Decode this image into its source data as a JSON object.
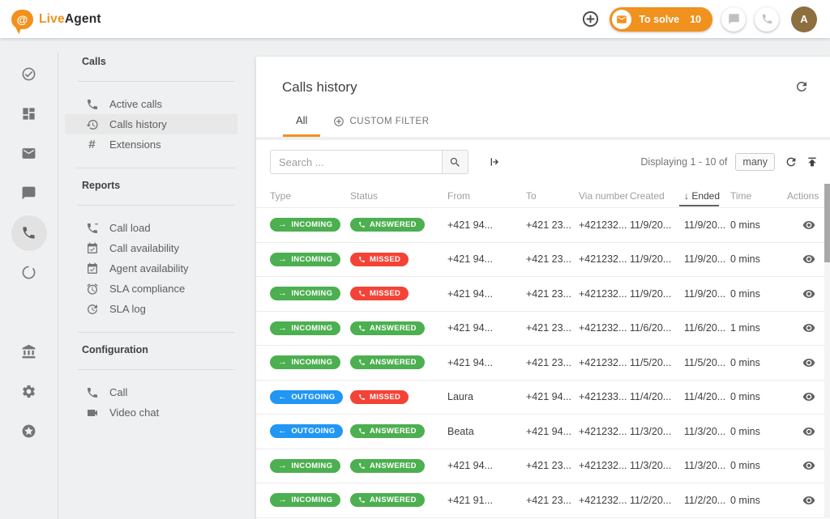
{
  "colors": {
    "accent_orange": "#f1911e",
    "incoming_green": "#4caf50",
    "outgoing_blue": "#2196f3",
    "missed_red": "#f44336",
    "avatar_brown": "#8d6e3f"
  },
  "topbar": {
    "logo_live": "Live",
    "logo_agent": "Agent",
    "logo_icon": "at-speech-bubble-icon",
    "add_icon": "add-circle-icon",
    "to_solve": {
      "icon": "mail-icon",
      "label": "To solve",
      "count": "10"
    },
    "chat_icon": "chat-icon",
    "phone_icon": "phone-icon",
    "avatar_letter": "A"
  },
  "nav_rail": {
    "items": [
      {
        "icon": "check-circle-icon",
        "active": false
      },
      {
        "icon": "dashboard-icon",
        "active": false
      },
      {
        "icon": "mail-icon",
        "active": false
      },
      {
        "icon": "chat-icon",
        "active": false
      },
      {
        "icon": "phone-icon",
        "active": true
      },
      {
        "icon": "circle-icon",
        "active": false
      },
      {
        "icon": "contacts-icon",
        "active": false
      },
      {
        "icon": "bank-icon",
        "active": false
      },
      {
        "icon": "settings-icon",
        "active": false
      },
      {
        "icon": "star-circle-icon",
        "active": false
      }
    ]
  },
  "sidebar": {
    "sections": [
      {
        "title": "Calls",
        "items": [
          {
            "icon": "phone-icon",
            "label": "Active calls",
            "active": false
          },
          {
            "icon": "history-icon",
            "label": "Calls history",
            "active": true
          },
          {
            "icon": "hash-icon",
            "label": "Extensions",
            "active": false
          }
        ]
      },
      {
        "title": "Reports",
        "items": [
          {
            "icon": "phone-load-icon",
            "label": "Call load",
            "active": false
          },
          {
            "icon": "calendar-check-icon",
            "label": "Call availability",
            "active": false
          },
          {
            "icon": "calendar-check-icon",
            "label": "Agent availability",
            "active": false
          },
          {
            "icon": "alarm-icon",
            "label": "SLA compliance",
            "active": false
          },
          {
            "icon": "clock-log-icon",
            "label": "SLA log",
            "active": false
          }
        ]
      },
      {
        "title": "Configuration",
        "items": [
          {
            "icon": "phone-icon",
            "label": "Call",
            "active": false
          },
          {
            "icon": "videocam-icon",
            "label": "Video chat",
            "active": false
          }
        ]
      }
    ]
  },
  "main": {
    "title": "Calls history",
    "refresh_icon": "refresh-icon",
    "tabs": [
      {
        "label": "All",
        "active": true,
        "icon": null
      },
      {
        "label": "CUSTOM FILTER",
        "active": false,
        "icon": "add-circle-icon"
      }
    ],
    "toolbar": {
      "search_placeholder": "Search ...",
      "search_icon": "search-icon",
      "forward_icon": "arrow-from-bar-icon",
      "displaying_text": "Displaying 1 - 10 of",
      "total_badge": "many",
      "refresh_icon": "refresh-icon",
      "export_icon": "upload-to-top-icon"
    },
    "table": {
      "columns": [
        "Type",
        "Status",
        "From",
        "To",
        "Via number",
        "Created",
        "Ended",
        "Time",
        "Actions"
      ],
      "sorted_column": "Ended",
      "sort_arrow": "↓",
      "actions_icon": "eye-icon",
      "rows": [
        {
          "type": "INCOMING",
          "status": "ANSWERED",
          "from": "+421 94...",
          "to": "+421 23...",
          "via": "+421232...",
          "created": "11/9/20...",
          "ended": "11/9/20...",
          "time": "0 mins"
        },
        {
          "type": "INCOMING",
          "status": "MISSED",
          "from": "+421 94...",
          "to": "+421 23...",
          "via": "+421232...",
          "created": "11/9/20...",
          "ended": "11/9/20...",
          "time": "0 mins"
        },
        {
          "type": "INCOMING",
          "status": "MISSED",
          "from": "+421 94...",
          "to": "+421 23...",
          "via": "+421232...",
          "created": "11/9/20...",
          "ended": "11/9/20...",
          "time": "0 mins"
        },
        {
          "type": "INCOMING",
          "status": "ANSWERED",
          "from": "+421 94...",
          "to": "+421 23...",
          "via": "+421232...",
          "created": "11/6/20...",
          "ended": "11/6/20...",
          "time": "1 mins"
        },
        {
          "type": "INCOMING",
          "status": "ANSWERED",
          "from": "+421 94...",
          "to": "+421 23...",
          "via": "+421232...",
          "created": "11/5/20...",
          "ended": "11/5/20...",
          "time": "0 mins"
        },
        {
          "type": "OUTGOING",
          "status": "MISSED",
          "from": "Laura",
          "to": "+421 94...",
          "via": "+421233...",
          "created": "11/4/20...",
          "ended": "11/4/20...",
          "time": "0 mins"
        },
        {
          "type": "OUTGOING",
          "status": "ANSWERED",
          "from": "Beata",
          "to": "+421 94...",
          "via": "+421232...",
          "created": "11/3/20...",
          "ended": "11/3/20...",
          "time": "0 mins"
        },
        {
          "type": "INCOMING",
          "status": "ANSWERED",
          "from": "+421 94...",
          "to": "+421 23...",
          "via": "+421232...",
          "created": "11/3/20...",
          "ended": "11/3/20...",
          "time": "0 mins"
        },
        {
          "type": "INCOMING",
          "status": "ANSWERED",
          "from": "+421 91...",
          "to": "+421 23...",
          "via": "+421232...",
          "created": "11/2/20...",
          "ended": "11/2/20...",
          "time": "0 mins"
        }
      ]
    }
  }
}
